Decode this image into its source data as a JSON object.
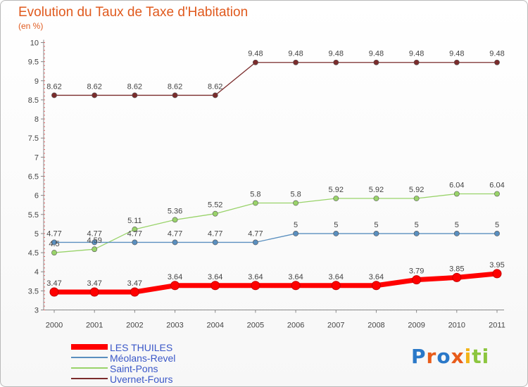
{
  "chart_data": {
    "type": "line",
    "title": "Evolution du Taux de Taxe d'Habitation",
    "subtitle": "(en %)",
    "x": [
      "2000",
      "2001",
      "2002",
      "2003",
      "2004",
      "2005",
      "2006",
      "2007",
      "2008",
      "2009",
      "2010",
      "2011"
    ],
    "ylim": [
      3,
      10
    ],
    "yticks": [
      "3",
      "3.5",
      "4",
      "4.5",
      "5",
      "5.5",
      "6",
      "6.5",
      "7",
      "7.5",
      "8",
      "8.5",
      "9",
      "9.5",
      "10"
    ],
    "grid": false,
    "legend_position": "bottom-left",
    "series": [
      {
        "name": "Uvernet-Fours",
        "color": "#7b2c2c",
        "values": [
          8.62,
          8.62,
          8.62,
          8.62,
          8.62,
          9.48,
          9.48,
          9.48,
          9.48,
          9.48,
          9.48,
          9.48
        ],
        "labels": [
          "8.62",
          "8.62",
          "8.62",
          "8.62",
          "8.62",
          "9.48",
          "9.48",
          "9.48",
          "9.48",
          "9.48",
          "9.48",
          "9.48"
        ]
      },
      {
        "name": "Saint-Pons",
        "color": "#99d36a",
        "values": [
          4.5,
          4.59,
          5.11,
          5.36,
          5.52,
          5.8,
          5.8,
          5.92,
          5.92,
          5.92,
          6.04,
          6.04
        ],
        "labels": [
          "4.5",
          "4.59",
          "5.11",
          "5.36",
          "5.52",
          "5.8",
          "5.8",
          "5.92",
          "5.92",
          "5.92",
          "6.04",
          "6.04"
        ]
      },
      {
        "name": "Méolans-Revel",
        "color": "#5a8fbf",
        "values": [
          4.77,
          4.77,
          4.77,
          4.77,
          4.77,
          4.77,
          5,
          5,
          5,
          5,
          5,
          5
        ],
        "labels": [
          "4.77",
          "4.77",
          "4.77",
          "4.77",
          "4.77",
          "4.77",
          "5",
          "5",
          "5",
          "5",
          "5",
          "5"
        ]
      },
      {
        "name": "LES THUILES",
        "color": "#ff0000",
        "values": [
          3.47,
          3.47,
          3.47,
          3.64,
          3.64,
          3.64,
          3.64,
          3.64,
          3.64,
          3.79,
          3.85,
          3.95
        ],
        "labels": [
          "3.47",
          "3.47",
          "3.47",
          "3.64",
          "3.64",
          "3.64",
          "3.64",
          "3.64",
          "3.64",
          "3.79",
          "3.85",
          "3.95"
        ]
      }
    ],
    "legend": [
      "LES THUILES",
      "Méolans-Revel",
      "Saint-Pons",
      "Uvernet-Fours"
    ]
  },
  "logo": {
    "letters": [
      "P",
      "r",
      "o",
      "x",
      "i",
      "t",
      "i"
    ]
  }
}
